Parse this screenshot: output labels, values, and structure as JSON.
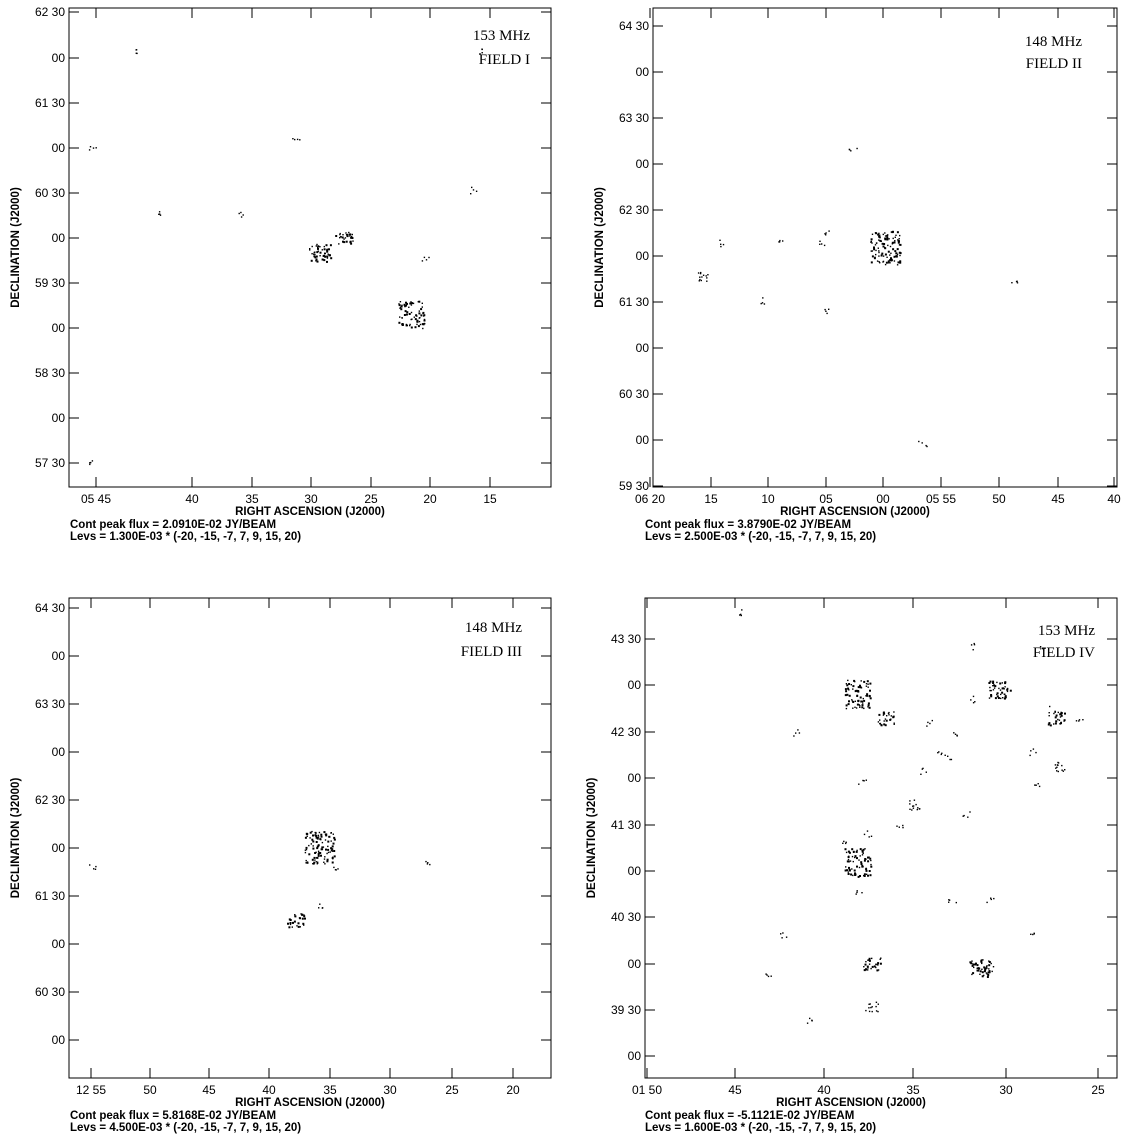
{
  "chart_data": [
    {
      "type": "scatter",
      "title": "",
      "annotations": [
        "153 MHz",
        "FIELD I"
      ],
      "xlabel": "RIGHT ASCENSION (J2000)",
      "ylabel": "DECLINATION (J2000)",
      "x_ticks": [
        "05 45",
        "40",
        "35",
        "30",
        "25",
        "20",
        "15"
      ],
      "y_ticks": [
        "62 30",
        "00",
        "61 30",
        "00",
        "60 30",
        "00",
        "59 30",
        "00",
        "58 30",
        "00",
        "57 30"
      ],
      "caption_flux": "Cont peak flux =  2.0910E-02 JY/BEAM",
      "caption_levs": "Levs = 1.300E-03 * (-20, -15, -7, 7, 9, 15, 20)",
      "sources": [
        {
          "x": 0.57,
          "y": 0.52,
          "size": 3
        },
        {
          "x": 0.52,
          "y": 0.49,
          "size": 4
        },
        {
          "x": 0.71,
          "y": 0.36,
          "size": 5
        },
        {
          "x": 0.14,
          "y": 0.91,
          "size": 1
        },
        {
          "x": 0.47,
          "y": 0.73,
          "size": 1
        },
        {
          "x": 0.74,
          "y": 0.48,
          "size": 1
        },
        {
          "x": 0.84,
          "y": 0.62,
          "size": 1
        },
        {
          "x": 0.05,
          "y": 0.71,
          "size": 1
        },
        {
          "x": 0.05,
          "y": 0.05,
          "size": 1
        },
        {
          "x": 0.18,
          "y": 0.57,
          "size": 1
        },
        {
          "x": 0.58,
          "y": 0.53,
          "size": 1
        },
        {
          "x": 0.36,
          "y": 0.57,
          "size": 1
        },
        {
          "x": 0.85,
          "y": 0.91,
          "size": 1
        }
      ]
    },
    {
      "type": "scatter",
      "title": "",
      "annotations": [
        "148 MHz",
        "FIELD II"
      ],
      "xlabel": "RIGHT ASCENSION (J2000)",
      "ylabel": "DECLINATION (J2000)",
      "x_ticks": [
        "06 20",
        "15",
        "10",
        "05",
        "00",
        "05 55",
        "50",
        "45",
        "40"
      ],
      "y_ticks": [
        "64 30",
        "00",
        "63 30",
        "00",
        "62 30",
        "00",
        "61 30",
        "00",
        "60 30",
        "00",
        "59 30"
      ],
      "caption_flux": "Cont peak flux =  3.8790E-02 JY/BEAM",
      "caption_levs": "Levs = 2.500E-03 * (-20, -15, -7, 7, 9, 15, 20)",
      "sources": [
        {
          "x": 0.5,
          "y": 0.5,
          "size": 6
        },
        {
          "x": 0.11,
          "y": 0.44,
          "size": 2
        },
        {
          "x": 0.58,
          "y": 0.09,
          "size": 1
        },
        {
          "x": 0.23,
          "y": 0.39,
          "size": 1
        },
        {
          "x": 0.27,
          "y": 0.51,
          "size": 1
        },
        {
          "x": 0.37,
          "y": 0.37,
          "size": 1
        },
        {
          "x": 0.36,
          "y": 0.51,
          "size": 1
        },
        {
          "x": 0.43,
          "y": 0.71,
          "size": 1
        },
        {
          "x": 0.37,
          "y": 0.53,
          "size": 1
        },
        {
          "x": 0.15,
          "y": 0.51,
          "size": 1
        },
        {
          "x": 0.78,
          "y": 0.43,
          "size": 1
        }
      ]
    },
    {
      "type": "scatter",
      "title": "",
      "annotations": [
        "148 MHz",
        "FIELD III"
      ],
      "xlabel": "RIGHT ASCENSION (J2000)",
      "ylabel": "DECLINATION (J2000)",
      "x_ticks": [
        "12 55",
        "50",
        "45",
        "40",
        "35",
        "30",
        "25",
        "20"
      ],
      "y_ticks": [
        "64 30",
        "00",
        "63 30",
        "00",
        "62 30",
        "00",
        "61 30",
        "00",
        "60 30",
        "00"
      ],
      "caption_flux": "Cont peak flux =  5.8168E-02 JY/BEAM",
      "caption_levs": "Levs = 4.500E-03 * (-20, -15, -7, 7, 9, 15, 20)",
      "sources": [
        {
          "x": 0.52,
          "y": 0.48,
          "size": 6
        },
        {
          "x": 0.47,
          "y": 0.33,
          "size": 3
        },
        {
          "x": 0.55,
          "y": 0.44,
          "size": 1
        },
        {
          "x": 0.05,
          "y": 0.44,
          "size": 1
        },
        {
          "x": 0.74,
          "y": 0.45,
          "size": 1
        },
        {
          "x": 0.52,
          "y": 0.36,
          "size": 1
        }
      ]
    },
    {
      "type": "scatter",
      "title": "",
      "annotations": [
        "153 MHz",
        "FIELD IV"
      ],
      "xlabel": "RIGHT ASCENSION (J2000)",
      "ylabel": "DECLINATION (J2000)",
      "x_ticks": [
        "01 50",
        "45",
        "40",
        "35",
        "30",
        "25"
      ],
      "y_ticks": [
        "43 30",
        "00",
        "42 30",
        "00",
        "41 30",
        "00",
        "40 30",
        "00",
        "39 30",
        "00"
      ],
      "caption_flux": "Cont peak flux = -5.1121E-02 JY/BEAM",
      "caption_levs": "Levs = 1.600E-03 * (-20, -15, -7, 7, 9, 15, 20)",
      "sources": [
        {
          "x": 0.45,
          "y": 0.45,
          "size": 5
        },
        {
          "x": 0.45,
          "y": 0.8,
          "size": 5
        },
        {
          "x": 0.71,
          "y": 0.23,
          "size": 4
        },
        {
          "x": 0.75,
          "y": 0.81,
          "size": 4
        },
        {
          "x": 0.51,
          "y": 0.75,
          "size": 3
        },
        {
          "x": 0.87,
          "y": 0.75,
          "size": 3
        },
        {
          "x": 0.48,
          "y": 0.24,
          "size": 3
        },
        {
          "x": 0.48,
          "y": 0.15,
          "size": 2
        },
        {
          "x": 0.26,
          "y": 0.22,
          "size": 1
        },
        {
          "x": 0.84,
          "y": 0.9,
          "size": 1
        },
        {
          "x": 0.57,
          "y": 0.57,
          "size": 2
        },
        {
          "x": 0.88,
          "y": 0.65,
          "size": 2
        },
        {
          "x": 0.68,
          "y": 0.55,
          "size": 1
        },
        {
          "x": 0.62,
          "y": 0.68,
          "size": 1
        },
        {
          "x": 0.32,
          "y": 0.72,
          "size": 1
        },
        {
          "x": 0.92,
          "y": 0.75,
          "size": 1
        },
        {
          "x": 0.6,
          "y": 0.74,
          "size": 1
        },
        {
          "x": 0.35,
          "y": 0.12,
          "size": 1
        },
        {
          "x": 0.29,
          "y": 0.3,
          "size": 1
        },
        {
          "x": 0.69,
          "y": 0.79,
          "size": 1
        },
        {
          "x": 0.64,
          "y": 0.67,
          "size": 1
        },
        {
          "x": 0.47,
          "y": 0.51,
          "size": 1
        },
        {
          "x": 0.73,
          "y": 0.23,
          "size": 1
        },
        {
          "x": 0.73,
          "y": 0.37,
          "size": 1
        },
        {
          "x": 0.82,
          "y": 0.3,
          "size": 1
        },
        {
          "x": 0.45,
          "y": 0.39,
          "size": 1
        },
        {
          "x": 0.46,
          "y": 0.62,
          "size": 1
        },
        {
          "x": 0.69,
          "y": 0.9,
          "size": 1
        },
        {
          "x": 0.2,
          "y": 0.97,
          "size": 1
        },
        {
          "x": 0.66,
          "y": 0.72,
          "size": 1
        },
        {
          "x": 0.54,
          "y": 0.53,
          "size": 1
        },
        {
          "x": 0.65,
          "y": 0.37,
          "size": 1
        },
        {
          "x": 0.83,
          "y": 0.61,
          "size": 1
        },
        {
          "x": 0.42,
          "y": 0.49,
          "size": 1
        },
        {
          "x": 0.82,
          "y": 0.68,
          "size": 1
        },
        {
          "x": 0.59,
          "y": 0.64,
          "size": 1
        },
        {
          "x": 0.86,
          "y": 0.77,
          "size": 1
        }
      ]
    }
  ]
}
